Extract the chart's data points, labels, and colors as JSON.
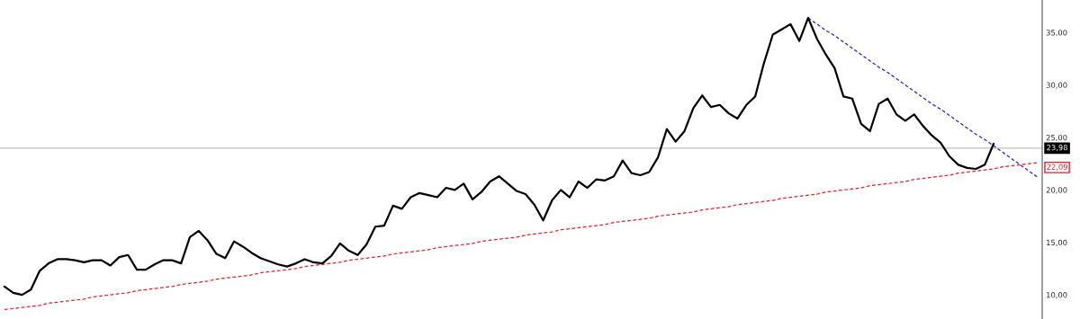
{
  "chart_data": {
    "type": "line",
    "ylim": [
      7.7,
      38.1
    ],
    "categories": [
      null,
      null,
      null,
      null,
      null,
      null,
      null,
      null,
      null,
      null,
      null,
      null,
      null,
      null,
      null,
      null,
      null,
      null,
      null,
      null,
      null,
      null,
      null,
      null,
      null,
      null,
      null,
      null,
      null,
      null,
      null,
      null,
      null,
      null,
      null,
      null,
      null,
      null,
      null,
      null,
      null,
      null,
      null,
      null,
      null,
      null,
      null,
      null,
      null,
      null,
      null,
      null,
      null,
      null,
      null,
      null,
      null,
      null,
      null,
      null,
      null,
      null,
      null,
      null,
      null,
      null,
      null,
      null,
      null,
      null,
      null,
      null,
      null,
      null,
      null,
      null,
      null,
      null,
      null,
      null,
      null,
      null,
      null,
      null,
      null,
      null,
      null,
      null,
      null,
      null,
      null,
      null,
      null,
      null,
      null,
      null,
      null,
      null,
      null,
      null,
      null,
      null,
      null,
      null,
      null,
      null,
      null,
      null,
      null,
      null,
      null,
      null,
      null,
      null,
      null,
      null,
      null,
      null
    ],
    "yticks": [
      {
        "value": 10,
        "label": "10,00"
      },
      {
        "value": 15,
        "label": "15,00"
      },
      {
        "value": 20,
        "label": "20,00"
      },
      {
        "value": 25,
        "label": "25,00"
      },
      {
        "value": 30,
        "label": "30,00"
      },
      {
        "value": 35,
        "label": "35,00"
      }
    ],
    "tick_labels": "y",
    "marker": "none",
    "series": [
      {
        "color": "#000000",
        "line_style": "solid",
        "values": [
          10.8,
          10.2,
          10.0,
          10.5,
          12.3,
          13.0,
          13.4,
          13.4,
          13.3,
          13.1,
          13.3,
          13.3,
          12.8,
          13.6,
          13.8,
          12.4,
          12.4,
          12.9,
          13.3,
          13.3,
          13.0,
          15.5,
          16.1,
          15.2,
          13.9,
          13.5,
          15.1,
          14.6,
          14.0,
          13.5,
          13.2,
          12.9,
          12.7,
          13.0,
          13.4,
          13.1,
          13.0,
          13.7,
          14.9,
          14.2,
          13.8,
          14.8,
          16.5,
          16.6,
          18.5,
          18.2,
          19.3,
          19.7,
          19.5,
          19.3,
          20.2,
          20.0,
          20.6,
          19.1,
          19.8,
          20.8,
          21.3,
          20.6,
          19.9,
          19.6,
          18.6,
          17.1,
          19.0,
          20.0,
          19.3,
          20.8,
          20.2,
          21.0,
          20.9,
          21.3,
          22.8,
          21.6,
          21.4,
          21.7,
          23.1,
          25.8,
          24.6,
          25.6,
          27.8,
          29.0,
          27.9,
          28.1,
          27.3,
          26.8,
          28.1,
          28.9,
          32.1,
          34.8,
          35.3,
          35.8,
          34.2,
          36.4,
          34.4,
          32.9,
          31.6,
          28.9,
          28.7,
          26.3,
          25.6,
          28.2,
          28.7,
          27.2,
          26.6,
          27.2,
          26.1,
          25.2,
          24.5,
          23.2,
          22.4,
          22.1,
          22.0,
          22.4,
          24.4,
          null,
          null,
          null,
          null,
          null
        ]
      },
      {
        "color": "#e0202a",
        "line_style": "dashed",
        "values": [
          8.6,
          8.7,
          8.8,
          8.9,
          9.0,
          9.2,
          9.3,
          9.4,
          9.5,
          9.6,
          9.8,
          9.9,
          10.0,
          10.1,
          10.2,
          10.4,
          10.5,
          10.6,
          10.7,
          10.8,
          11.0,
          11.1,
          11.2,
          11.3,
          11.5,
          11.6,
          11.7,
          11.8,
          11.9,
          12.1,
          12.2,
          12.3,
          12.4,
          12.5,
          12.7,
          12.8,
          12.9,
          13.0,
          13.1,
          13.3,
          13.4,
          13.5,
          13.6,
          13.7,
          13.9,
          14.0,
          14.1,
          14.2,
          14.3,
          14.5,
          14.6,
          14.7,
          14.8,
          14.9,
          15.1,
          15.2,
          15.3,
          15.4,
          15.5,
          15.7,
          15.8,
          15.9,
          16.0,
          16.2,
          16.3,
          16.4,
          16.5,
          16.6,
          16.7,
          16.9,
          17.0,
          17.1,
          17.2,
          17.3,
          17.5,
          17.6,
          17.7,
          17.8,
          17.9,
          18.1,
          18.2,
          18.3,
          18.4,
          18.6,
          18.7,
          18.8,
          18.9,
          19.0,
          19.2,
          19.3,
          19.4,
          19.5,
          19.6,
          19.8,
          19.9,
          20.0,
          20.1,
          20.2,
          20.4,
          20.5,
          20.6,
          20.7,
          20.8,
          21.0,
          21.1,
          21.2,
          21.3,
          21.4,
          21.6,
          21.7,
          21.8,
          21.9,
          22.0,
          22.2,
          22.3,
          22.4,
          22.5,
          22.6
        ]
      },
      {
        "color": "#2020d0",
        "line_style": "dashed",
        "values": [
          null,
          null,
          null,
          null,
          null,
          null,
          null,
          null,
          null,
          null,
          null,
          null,
          null,
          null,
          null,
          null,
          null,
          null,
          null,
          null,
          null,
          null,
          null,
          null,
          null,
          null,
          null,
          null,
          null,
          null,
          null,
          null,
          null,
          null,
          null,
          null,
          null,
          null,
          null,
          null,
          null,
          null,
          null,
          null,
          null,
          null,
          null,
          null,
          null,
          null,
          null,
          null,
          null,
          null,
          null,
          null,
          null,
          null,
          null,
          null,
          null,
          null,
          null,
          null,
          null,
          null,
          null,
          null,
          null,
          null,
          null,
          null,
          null,
          null,
          null,
          null,
          null,
          null,
          null,
          null,
          null,
          null,
          null,
          null,
          null,
          null,
          null,
          null,
          null,
          null,
          null,
          36.4,
          35.8,
          35.2,
          34.7,
          34.1,
          33.5,
          32.9,
          32.3,
          31.7,
          31.2,
          30.6,
          30.0,
          29.4,
          28.8,
          28.2,
          27.7,
          27.1,
          26.5,
          25.9,
          25.3,
          24.8,
          24.2,
          23.6,
          23.0,
          22.4,
          21.8,
          21.2
        ]
      }
    ],
    "ref_lines": [
      {
        "axis": "y",
        "value": 23.98,
        "label": "23,98",
        "color": "#c0c0c0"
      }
    ],
    "annotations": [
      "22,09"
    ]
  }
}
